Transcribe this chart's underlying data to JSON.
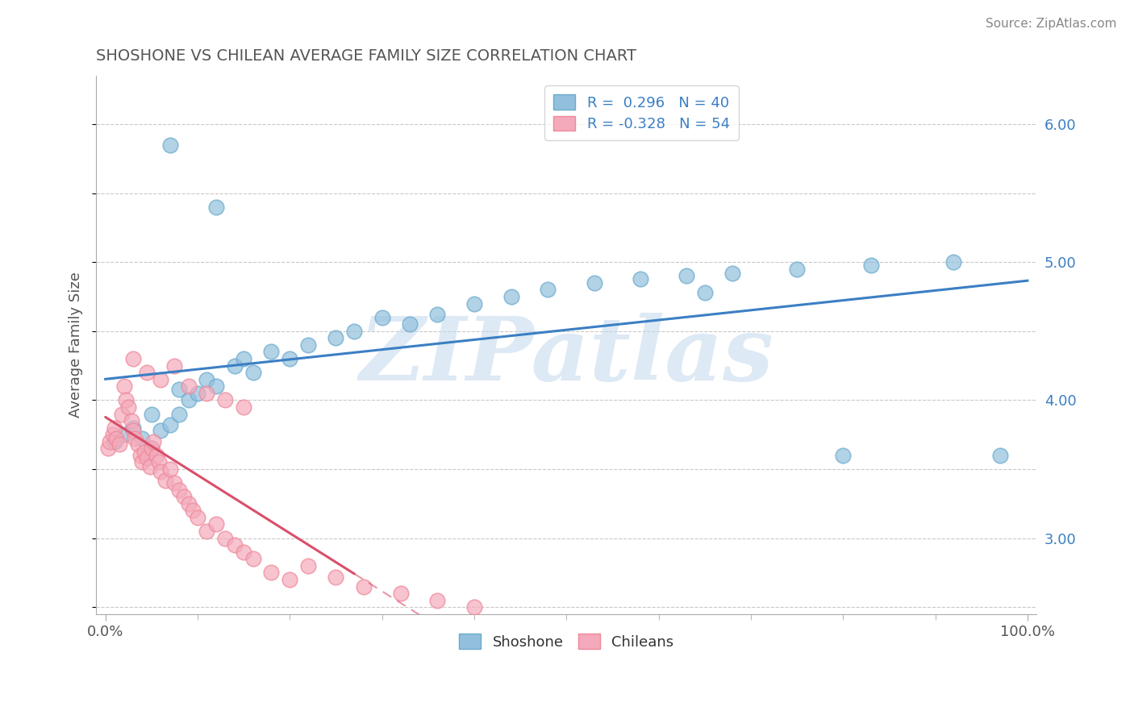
{
  "title": "SHOSHONE VS CHILEAN AVERAGE FAMILY SIZE CORRELATION CHART",
  "source": "Source: ZipAtlas.com",
  "ylabel": "Average Family Size",
  "xlim": [
    -1,
    101
  ],
  "ylim": [
    2.45,
    6.35
  ],
  "yticks": [
    3.0,
    4.0,
    5.0,
    6.0
  ],
  "xtick_labels": [
    "0.0%",
    "100.0%"
  ],
  "ytick_labels": [
    "3.00",
    "4.00",
    "5.00",
    "6.00"
  ],
  "shoshone_color": "#92C0DC",
  "chilean_color": "#F4AABB",
  "shoshone_edge_color": "#6AAACE",
  "chilean_edge_color": "#EE8899",
  "shoshone_line_color": "#3B7FC4",
  "chilean_line_color": "#D94F6A",
  "tick_color": "#3B7FC4",
  "title_color": "#555555",
  "watermark": "ZIPatlas",
  "watermark_color": "#BDD5EA",
  "background_color": "#FFFFFF",
  "grid_color": "#BBBBBB",
  "source_color": "#888888",
  "shoshone_x": [
    7,
    12,
    1,
    2,
    3,
    4,
    5,
    6,
    7,
    8,
    9,
    10,
    11,
    12,
    14,
    16,
    18,
    20,
    22,
    25,
    27,
    30,
    33,
    36,
    40,
    44,
    48,
    53,
    58,
    63,
    68,
    75,
    83,
    92,
    97,
    5,
    8,
    15,
    65,
    80
  ],
  "shoshone_y": [
    5.85,
    5.4,
    3.7,
    3.75,
    3.8,
    3.72,
    3.65,
    3.78,
    3.82,
    3.9,
    4.0,
    4.05,
    4.15,
    4.1,
    4.25,
    4.2,
    4.35,
    4.3,
    4.4,
    4.45,
    4.5,
    4.6,
    4.55,
    4.62,
    4.7,
    4.75,
    4.8,
    4.85,
    4.88,
    4.9,
    4.92,
    4.95,
    4.98,
    5.0,
    3.6,
    3.9,
    4.08,
    4.3,
    4.78,
    3.6
  ],
  "chilean_x": [
    0.3,
    0.5,
    0.8,
    1.0,
    1.2,
    1.5,
    1.8,
    2.0,
    2.2,
    2.5,
    2.8,
    3.0,
    3.2,
    3.5,
    3.8,
    4.0,
    4.2,
    4.5,
    4.8,
    5.0,
    5.2,
    5.5,
    5.8,
    6.0,
    6.5,
    7.0,
    7.5,
    8.0,
    8.5,
    9.0,
    9.5,
    10.0,
    11.0,
    12.0,
    13.0,
    14.0,
    15.0,
    16.0,
    18.0,
    20.0,
    22.0,
    25.0,
    28.0,
    32.0,
    36.0,
    40.0,
    3.0,
    4.5,
    6.0,
    7.5,
    9.0,
    11.0,
    13.0,
    15.0
  ],
  "chilean_y": [
    3.65,
    3.7,
    3.75,
    3.8,
    3.72,
    3.68,
    3.9,
    4.1,
    4.0,
    3.95,
    3.85,
    3.78,
    3.72,
    3.68,
    3.6,
    3.55,
    3.62,
    3.58,
    3.52,
    3.65,
    3.7,
    3.6,
    3.55,
    3.48,
    3.42,
    3.5,
    3.4,
    3.35,
    3.3,
    3.25,
    3.2,
    3.15,
    3.05,
    3.1,
    3.0,
    2.95,
    2.9,
    2.85,
    2.75,
    2.7,
    2.8,
    2.72,
    2.65,
    2.6,
    2.55,
    2.5,
    4.3,
    4.2,
    4.15,
    4.25,
    4.1,
    4.05,
    4.0,
    3.95
  ]
}
